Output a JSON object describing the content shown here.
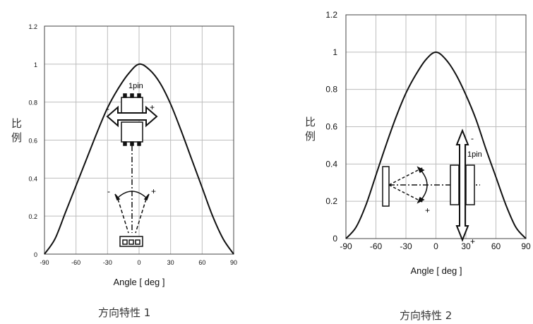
{
  "chart_data": [
    {
      "type": "line",
      "caption": "方向特性 1",
      "xlabel": "Angle [ deg ]",
      "ylabel": "比例",
      "xlim": [
        -90,
        90
      ],
      "ylim": [
        0,
        1.2
      ],
      "x_ticks": [
        "-90",
        "-60",
        "-30",
        "0",
        "30",
        "60",
        "90"
      ],
      "y_ticks": [
        "0",
        "0.2",
        "0.4",
        "0.6",
        "0.8",
        "1",
        "1.2"
      ],
      "grid": true,
      "x": [
        -90,
        -80,
        -70,
        -60,
        -50,
        -40,
        -30,
        -20,
        -10,
        0,
        10,
        20,
        30,
        40,
        50,
        60,
        70,
        80,
        90
      ],
      "y": [
        0.0,
        0.08,
        0.22,
        0.36,
        0.5,
        0.64,
        0.77,
        0.87,
        0.95,
        1.0,
        0.97,
        0.9,
        0.79,
        0.65,
        0.5,
        0.35,
        0.2,
        0.08,
        0.0
      ],
      "annotations": [
        "1pin",
        "-",
        "+",
        "-",
        "+"
      ]
    },
    {
      "type": "line",
      "caption": "方向特性 2",
      "xlabel": "Angle [ deg ]",
      "ylabel": "比例",
      "xlim": [
        -90,
        90
      ],
      "ylim": [
        0,
        1.2
      ],
      "x_ticks": [
        "-90",
        "-60",
        "-30",
        "0",
        "30",
        "60",
        "90"
      ],
      "y_ticks": [
        "0",
        "0.2",
        "0.4",
        "0.6",
        "0.8",
        "1",
        "1.2"
      ],
      "grid": true,
      "x": [
        -90,
        -80,
        -70,
        -60,
        -50,
        -40,
        -30,
        -20,
        -10,
        0,
        10,
        20,
        30,
        40,
        50,
        60,
        70,
        80,
        90
      ],
      "y": [
        0.0,
        0.06,
        0.18,
        0.34,
        0.5,
        0.65,
        0.78,
        0.88,
        0.96,
        1.0,
        0.96,
        0.88,
        0.77,
        0.64,
        0.48,
        0.33,
        0.18,
        0.06,
        0.0
      ],
      "annotations": [
        "1pin",
        "-",
        "+",
        "+"
      ]
    }
  ]
}
